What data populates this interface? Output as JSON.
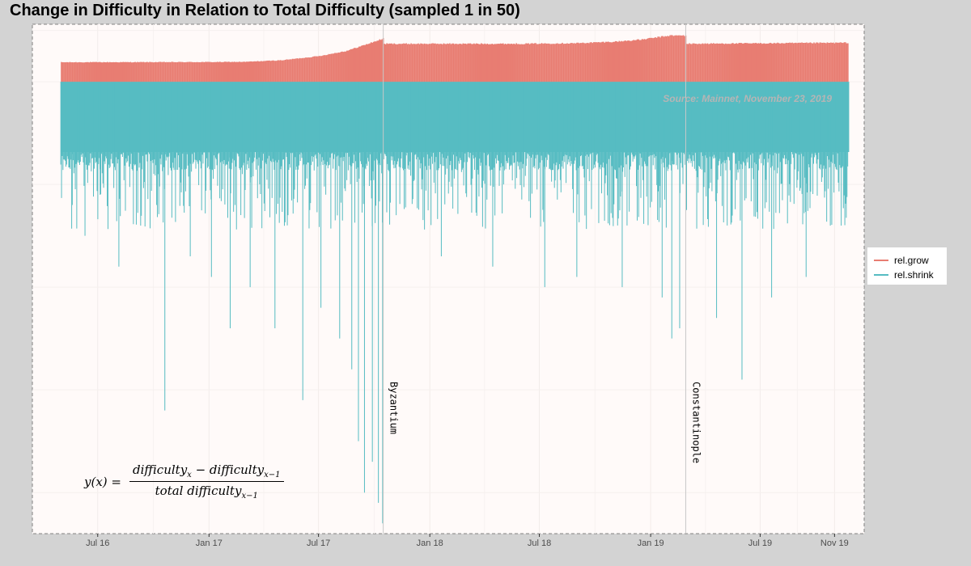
{
  "chart_data": {
    "type": "bar",
    "title": "Change in Difficulty in Relation to Total Difficulty (sampled 1 in 50)",
    "xlabel": "",
    "ylabel": "",
    "x_range": [
      "2016-03-15",
      "2019-12-20"
    ],
    "x_ticks": [
      "Jul 16",
      "Jan 17",
      "Jul 17",
      "Jan 18",
      "Jul 18",
      "Jan 19",
      "Jul 19",
      "Nov 19"
    ],
    "y_range": [
      -0.22,
      0.028
    ],
    "y_axis_labels_visible": false,
    "grid": "on",
    "legend_position": "right",
    "series": [
      {
        "name": "rel.grow",
        "color": "#e87d72",
        "data_start": "2016-05-01",
        "data_end": "2019-11-23",
        "envelope": [
          [
            "2016-05-01",
            0.0095
          ],
          [
            "2017-01-01",
            0.0096
          ],
          [
            "2017-03-01",
            0.0097
          ],
          [
            "2017-05-01",
            0.0105
          ],
          [
            "2017-07-01",
            0.0125
          ],
          [
            "2017-08-15",
            0.015
          ],
          [
            "2017-09-15",
            0.018
          ],
          [
            "2017-10-15",
            0.021
          ],
          [
            "2017-10-16",
            0.0185
          ],
          [
            "2018-03-01",
            0.0185
          ],
          [
            "2018-06-01",
            0.0185
          ],
          [
            "2018-09-01",
            0.0188
          ],
          [
            "2018-11-01",
            0.0195
          ],
          [
            "2018-12-15",
            0.0205
          ],
          [
            "2019-02-01",
            0.0225
          ],
          [
            "2019-02-27",
            0.0225
          ],
          [
            "2019-02-28",
            0.0185
          ],
          [
            "2019-11-23",
            0.019
          ]
        ]
      },
      {
        "name": "rel.shrink",
        "color": "#56bcc2",
        "data_start": "2016-05-01",
        "data_end": "2019-11-23",
        "typical_depth": -0.036,
        "extreme_spikes": [
          [
            "2016-05-20",
            -0.06
          ],
          [
            "2016-06-10",
            -0.075
          ],
          [
            "2016-07-05",
            -0.055
          ],
          [
            "2016-08-05",
            -0.09
          ],
          [
            "2016-09-10",
            -0.07
          ],
          [
            "2016-10-20",
            -0.16
          ],
          [
            "2016-12-01",
            -0.085
          ],
          [
            "2017-01-05",
            -0.095
          ],
          [
            "2017-02-05",
            -0.12
          ],
          [
            "2017-03-10",
            -0.1
          ],
          [
            "2017-04-20",
            -0.12
          ],
          [
            "2017-06-05",
            -0.155
          ],
          [
            "2017-07-05",
            -0.11
          ],
          [
            "2017-08-05",
            -0.125
          ],
          [
            "2017-08-25",
            -0.14
          ],
          [
            "2017-09-05",
            -0.175
          ],
          [
            "2017-09-15",
            -0.2
          ],
          [
            "2017-09-28",
            -0.185
          ],
          [
            "2017-10-08",
            -0.205
          ],
          [
            "2017-10-15",
            -0.215
          ],
          [
            "2018-01-20",
            -0.085
          ],
          [
            "2018-04-15",
            -0.09
          ],
          [
            "2018-07-10",
            -0.1
          ],
          [
            "2018-09-01",
            -0.095
          ],
          [
            "2018-11-15",
            -0.1
          ],
          [
            "2019-01-20",
            -0.105
          ],
          [
            "2019-02-05",
            -0.125
          ],
          [
            "2019-02-18",
            -0.12
          ],
          [
            "2019-04-20",
            -0.115
          ],
          [
            "2019-06-01",
            -0.145
          ],
          [
            "2019-07-20",
            -0.105
          ],
          [
            "2019-09-15",
            -0.095
          ],
          [
            "2019-10-25",
            -0.07
          ]
        ]
      }
    ],
    "events": [
      {
        "date": "2017-10-16",
        "label": "Byzantium"
      },
      {
        "date": "2019-02-28",
        "label": "Constantinople"
      }
    ],
    "annotation": "Source: Mainnet, November 23, 2019",
    "formula": {
      "lhs": "y(x) =",
      "num_a": "difficulty",
      "num_a_sub": "x",
      "minus": " − ",
      "num_b": "difficulty",
      "num_b_sub": "x−1",
      "den": "total difficulty",
      "den_sub": "x−1"
    }
  }
}
